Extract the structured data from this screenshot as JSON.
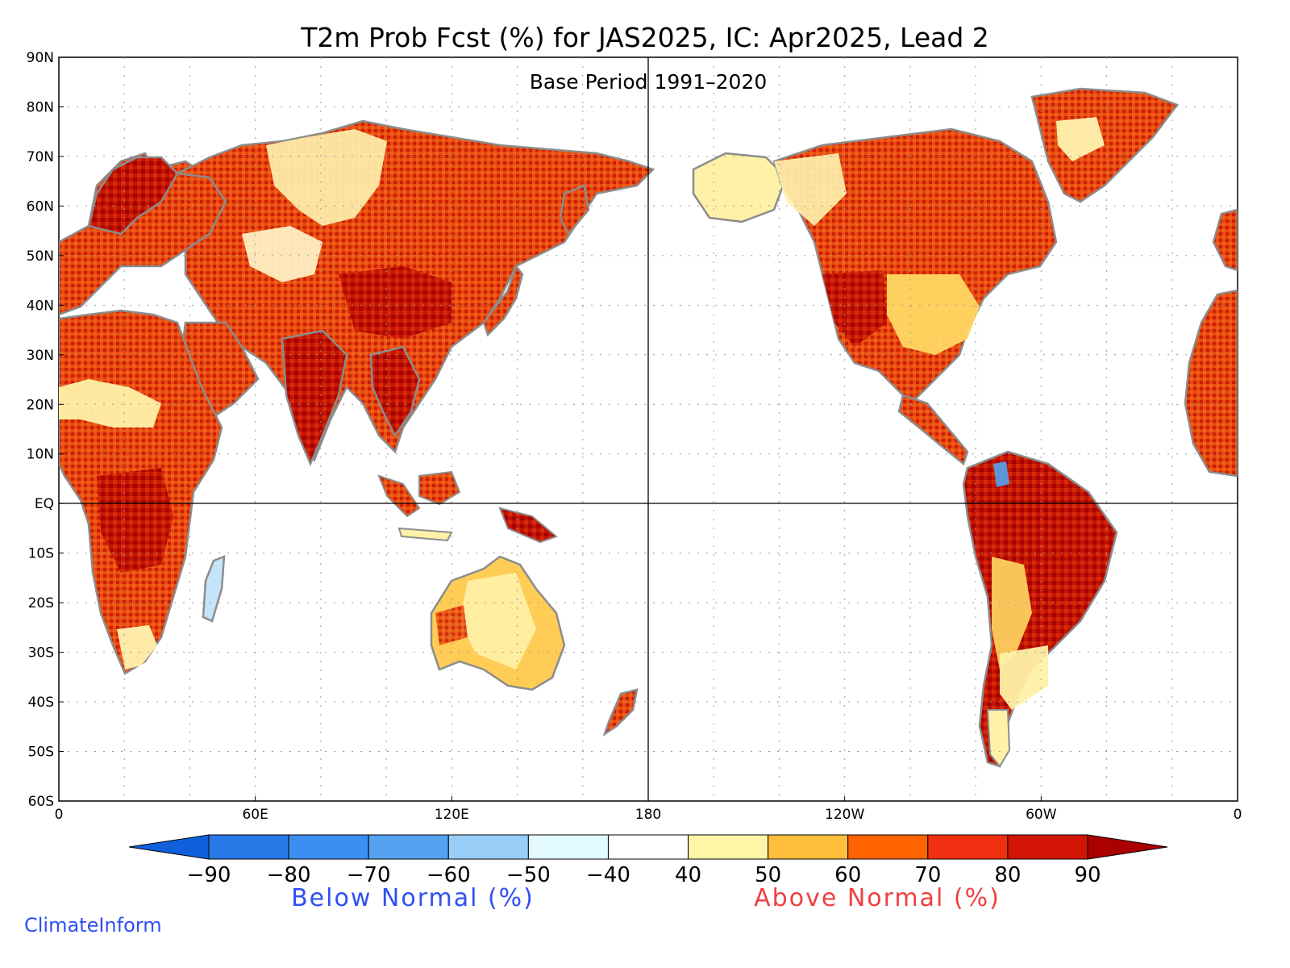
{
  "title": "T2m Prob Fcst (%) for JAS2025, IC: Apr2025, Lead 2",
  "subtitle": "Base Period 1991–2020",
  "credit": "ClimateInform",
  "map": {
    "lon_range": [
      0,
      360
    ],
    "lat_range": [
      -60,
      90
    ],
    "grid": "dotted",
    "lat_labels": [
      "90N",
      "80N",
      "70N",
      "60N",
      "50N",
      "40N",
      "30N",
      "20N",
      "10N",
      "EQ",
      "10S",
      "20S",
      "30S",
      "40S",
      "50S",
      "60S"
    ],
    "lon_labels": [
      "0",
      "60E",
      "120E",
      "180",
      "120W",
      "60W",
      "0"
    ],
    "coast_color": "#8c8c8c",
    "ocean_color": "#ffffff"
  },
  "legend": {
    "below_label": "Below Normal (%)",
    "above_label": "Above Normal (%)",
    "below_color": "#3050f0",
    "above_color": "#f04040",
    "tick_labels": [
      "−90",
      "−80",
      "−70",
      "−60",
      "−50",
      "−40",
      "40",
      "50",
      "60",
      "70",
      "80",
      "90"
    ],
    "colors": [
      "#1060dc",
      "#2878e8",
      "#3c8ef0",
      "#54a2f0",
      "#98cef8",
      "#e2faff",
      "#ffffff",
      "#fff5a6",
      "#ffbe3c",
      "#ff6400",
      "#f03010",
      "#d21404",
      "#aa0000"
    ]
  }
}
